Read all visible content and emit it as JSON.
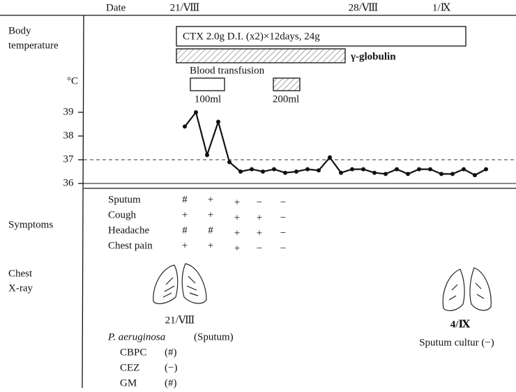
{
  "chart_data": {
    "type": "line",
    "x_header": "Date",
    "categories": [
      "21/Ⅷ",
      null,
      null,
      null,
      null,
      null,
      null,
      null,
      null,
      null,
      null,
      null,
      null,
      null,
      null,
      null,
      "28/Ⅷ",
      null,
      null,
      null,
      null,
      null,
      null,
      "1/Ⅸ",
      null,
      null,
      null,
      null
    ],
    "values": [
      38.4,
      39.0,
      37.2,
      38.6,
      36.9,
      36.5,
      36.6,
      36.5,
      36.6,
      36.45,
      36.5,
      36.6,
      36.55,
      37.1,
      36.45,
      36.6,
      36.6,
      36.45,
      36.4,
      36.6,
      36.4,
      36.6,
      36.6,
      36.4,
      36.4,
      36.6,
      36.35,
      36.6
    ],
    "color": "#111111",
    "ylim": [
      36,
      40
    ],
    "yticks": [
      36,
      37,
      38,
      39
    ],
    "y_unit": "°C",
    "reference_line": 37
  },
  "row_labels": {
    "body": "Body",
    "temperature": "temperature",
    "symptoms": "Symptoms",
    "chest": "Chest",
    "xray": "X-ray"
  },
  "treatments": {
    "ctx": "CTX 2.0g D.I. (x2)×12days, 24g",
    "globulin": "γ-globulin",
    "transfusion": "Blood transfusion",
    "dose_1": "100ml",
    "dose_2": "200ml"
  },
  "symptoms": [
    {
      "name": "Sputum",
      "grades": [
        "#",
        "+",
        "+",
        "−",
        "−"
      ]
    },
    {
      "name": "Cough",
      "grades": [
        "+",
        "+",
        "+",
        "+",
        "−"
      ]
    },
    {
      "name": "Headache",
      "grades": [
        "#",
        "#",
        "+",
        "+",
        "−"
      ]
    },
    {
      "name": "Chest pain",
      "grades": [
        "+",
        "+",
        "+",
        "−",
        "−"
      ]
    }
  ],
  "xray": [
    {
      "date": "21/Ⅷ"
    },
    {
      "date": "4/Ⅸ",
      "note": "Sputum cultur (−)"
    }
  ],
  "culture": {
    "organism": "P. aeruginosa",
    "source": "(Sputum)",
    "drugs": [
      {
        "name": "CBPC",
        "result": "(#)"
      },
      {
        "name": "CEZ",
        "result": "(−)"
      },
      {
        "name": "GM",
        "result": "(#)"
      }
    ]
  }
}
